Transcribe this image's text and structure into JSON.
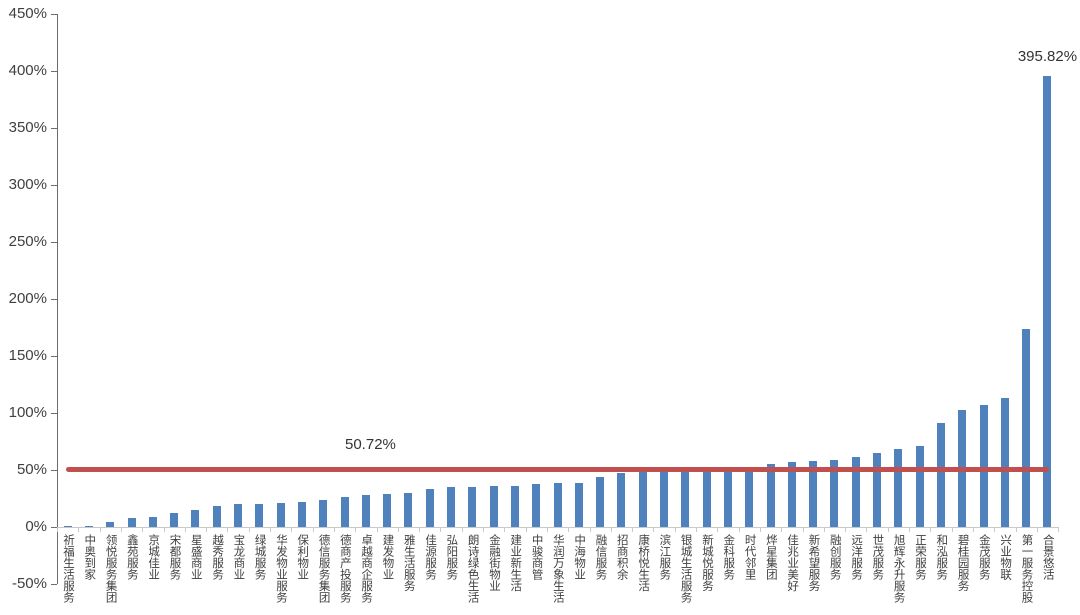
{
  "chart_data": {
    "type": "bar",
    "title": "",
    "xlabel": "",
    "ylabel": "",
    "unit": "%",
    "ylim": [
      -50,
      450
    ],
    "ytick_step": 50,
    "ytick_labels": [
      "450%",
      "400%",
      "350%",
      "300%",
      "250%",
      "200%",
      "150%",
      "100%",
      "50%",
      "0%",
      "-50%"
    ],
    "grid": false,
    "legend": false,
    "categories": [
      "祈福生活服务",
      "中奥到家",
      "领悦服务集团",
      "鑫苑服务",
      "京城佳业",
      "宋都服务",
      "星盛商业",
      "越秀服务",
      "宝龙商业",
      "绿城服务",
      "华发物业服务",
      "保利物业",
      "德信服务集团",
      "德商产投服务",
      "卓越商企服务",
      "建发物业",
      "雅生活服务",
      "佳源服务",
      "弘阳服务",
      "朗诗绿色生活",
      "金融街物业",
      "建业新生活",
      "中骏商管",
      "华润万象生活",
      "中海物业",
      "融信服务",
      "招商积余",
      "康桥悦生活",
      "滨江服务",
      "银城生活服务",
      "新城悦服务",
      "金科服务",
      "时代邻里",
      "烨星集团",
      "佳兆业美好",
      "新希望服务",
      "融创服务",
      "远洋服务",
      "世茂服务",
      "旭辉永升服务",
      "正荣服务",
      "和泓服务",
      "碧桂园服务",
      "金茂服务",
      "兴业物联",
      "第一服务控股",
      "合景悠活"
    ],
    "values": [
      0.5,
      1,
      4,
      8,
      9,
      12,
      15,
      18,
      20,
      20,
      21,
      22,
      24,
      26,
      28,
      29,
      30,
      33,
      35,
      35,
      36,
      36,
      38,
      39,
      39,
      44,
      47,
      50,
      51,
      51,
      51,
      51,
      53,
      55,
      57,
      58,
      59,
      61,
      65,
      68,
      71,
      91,
      103,
      107,
      113,
      174,
      395.82
    ],
    "reference_line": {
      "value": 50.72,
      "label": "50.72%"
    },
    "max_label": {
      "value": 395.82,
      "text": "395.82%"
    },
    "colors": {
      "bar": "#4f81bd",
      "reference_line": "#c0504d",
      "axis": "#6e6e6e",
      "baseline": "#c9c9c9",
      "text": "#404040"
    }
  }
}
